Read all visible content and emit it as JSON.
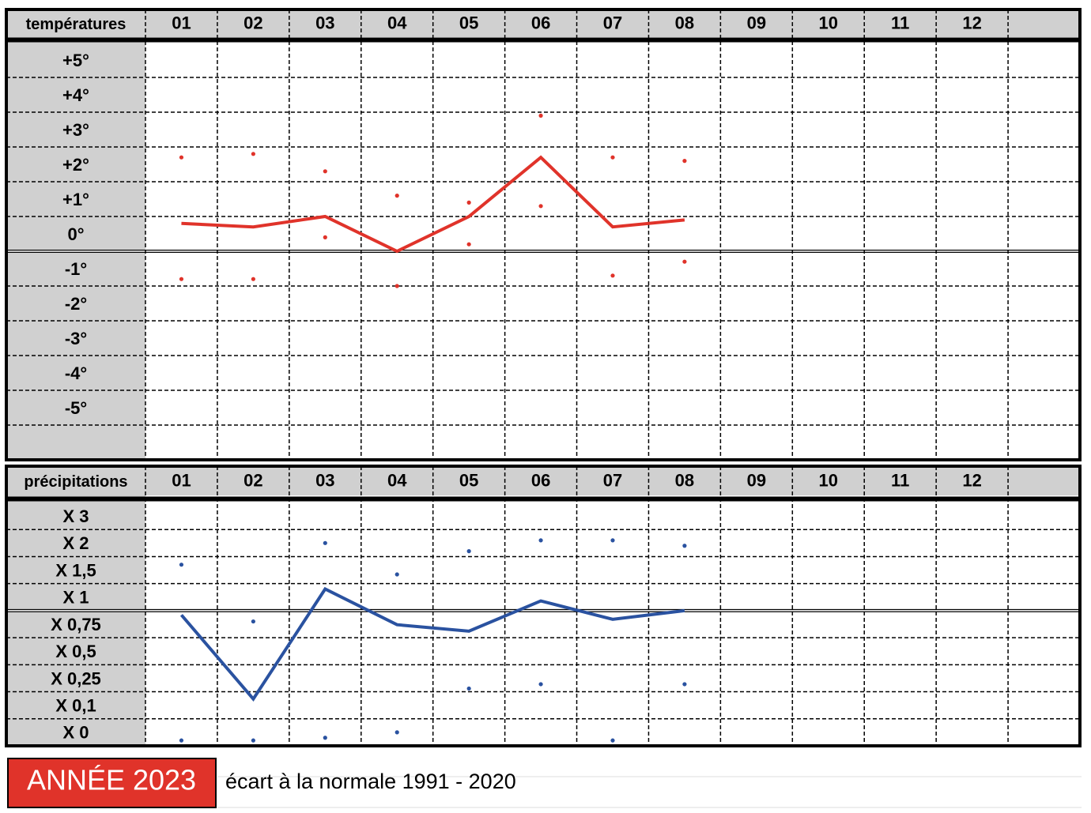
{
  "chart_data": [
    {
      "type": "line",
      "title": "températures",
      "categories": [
        "01",
        "02",
        "03",
        "04",
        "05",
        "06",
        "07",
        "08",
        "09",
        "10",
        "11",
        "12",
        null
      ],
      "series": [
        {
          "color": "#e0332a",
          "line": true,
          "markers": false,
          "values": [
            0.8,
            0.7,
            1.0,
            0,
            1.0,
            2.7,
            0.7,
            0.9,
            null,
            null,
            null,
            null,
            null
          ]
        },
        {
          "color": "#e0332a",
          "line": false,
          "markers": true,
          "values": [
            2.7,
            2.8,
            2.3,
            1.6,
            1.4,
            3.9,
            2.7,
            2.6,
            null,
            null,
            null,
            null,
            null
          ]
        },
        {
          "color": "#e0332a",
          "line": false,
          "markers": true,
          "values": [
            -0.8,
            -0.8,
            0.4,
            -1.0,
            0.2,
            1.3,
            -0.7,
            -0.3,
            null,
            null,
            null,
            null,
            null
          ]
        }
      ],
      "ylim": [
        -6,
        6
      ],
      "yticks": [
        {
          "value": 5,
          "label": "+5°"
        },
        {
          "value": 4,
          "label": "+4°"
        },
        {
          "value": 3,
          "label": "+3°"
        },
        {
          "value": 2,
          "label": "+2°"
        },
        {
          "value": 1,
          "label": "+1°"
        },
        {
          "value": 0,
          "label": "0°"
        },
        {
          "value": -1,
          "label": "-1°"
        },
        {
          "value": -2,
          "label": "-2°"
        },
        {
          "value": -3,
          "label": "-3°"
        },
        {
          "value": -4,
          "label": "-4°"
        },
        {
          "value": -5,
          "label": "-5°"
        }
      ],
      "yscale": "linear",
      "baseline": 0,
      "grid": true
    },
    {
      "type": "line",
      "title": "précipitations",
      "categories": [
        "01",
        "02",
        "03",
        "04",
        "05",
        "06",
        "07",
        "08",
        "09",
        "10",
        "11",
        "12",
        null
      ],
      "series": [
        {
          "color": "#2a52a0",
          "line": true,
          "markers": false,
          "values": [
            0.96,
            0.21,
            1.4,
            0.87,
            0.81,
            1.18,
            0.92,
            1.0,
            null,
            null,
            null,
            null,
            null
          ]
        },
        {
          "color": "#2a52a0",
          "line": false,
          "markers": true,
          "values": [
            1.85,
            0.9,
            2.5,
            1.67,
            2.2,
            2.6,
            2.6,
            2.4,
            null,
            null,
            null,
            null,
            null
          ]
        },
        {
          "color": "#2a52a0",
          "line": false,
          "markers": true,
          "values": [
            0.02,
            0.02,
            0.03,
            0.05,
            0.28,
            0.32,
            0.02,
            0.32,
            null,
            null,
            null,
            null,
            null
          ]
        }
      ],
      "ylim": [
        0,
        4
      ],
      "yticks": [
        {
          "value": 3,
          "label": "X 3"
        },
        {
          "value": 2,
          "label": "X 2"
        },
        {
          "value": 1.5,
          "label": "X 1,5"
        },
        {
          "value": 1,
          "label": "X 1"
        },
        {
          "value": 0.75,
          "label": "X 0,75"
        },
        {
          "value": 0.5,
          "label": "X 0,5"
        },
        {
          "value": 0.25,
          "label": "X 0,25"
        },
        {
          "value": 0.1,
          "label": "X 0,1"
        },
        {
          "value": 0,
          "label": "X 0"
        }
      ],
      "yscale": "piecewise",
      "baseline": 1,
      "grid": true
    }
  ],
  "footer": {
    "badge": "ANNÉE 2023",
    "caption": "écart à la normale 1991 - 2020"
  }
}
